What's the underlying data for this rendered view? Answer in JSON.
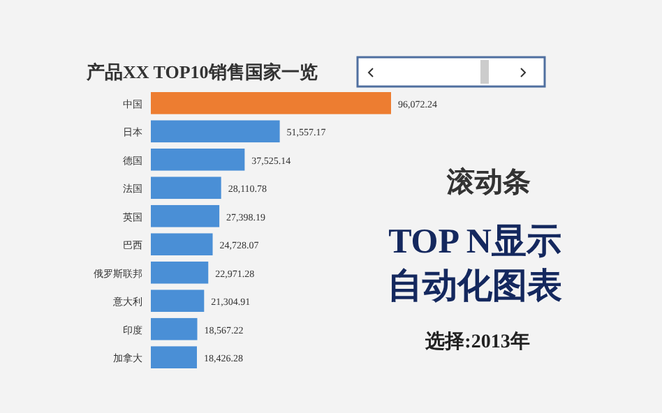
{
  "chart_data": {
    "type": "bar",
    "orientation": "horizontal",
    "title": "产品XX TOP10销售国家一览",
    "categories": [
      "中国",
      "日本",
      "德国",
      "法国",
      "英国",
      "巴西",
      "俄罗斯联邦",
      "意大利",
      "印度",
      "加拿大"
    ],
    "values": [
      96072.24,
      51557.17,
      37525.14,
      28110.78,
      27398.19,
      24728.07,
      22971.28,
      21304.91,
      18567.22,
      18426.28
    ],
    "value_labels": [
      "96,072.24",
      "51,557.17",
      "37,525.14",
      "28,110.78",
      "27,398.19",
      "24,728.07",
      "22,971.28",
      "21,304.91",
      "18,567.22",
      "18,426.28"
    ],
    "colors": [
      "#ed7d31",
      "#4a8fd6",
      "#4a8fd6",
      "#4a8fd6",
      "#4a8fd6",
      "#4a8fd6",
      "#4a8fd6",
      "#4a8fd6",
      "#4a8fd6",
      "#4a8fd6"
    ],
    "annotations": [
      "滚动条",
      "TOP N显示",
      "自动化图表",
      "选择:2013年"
    ]
  }
}
